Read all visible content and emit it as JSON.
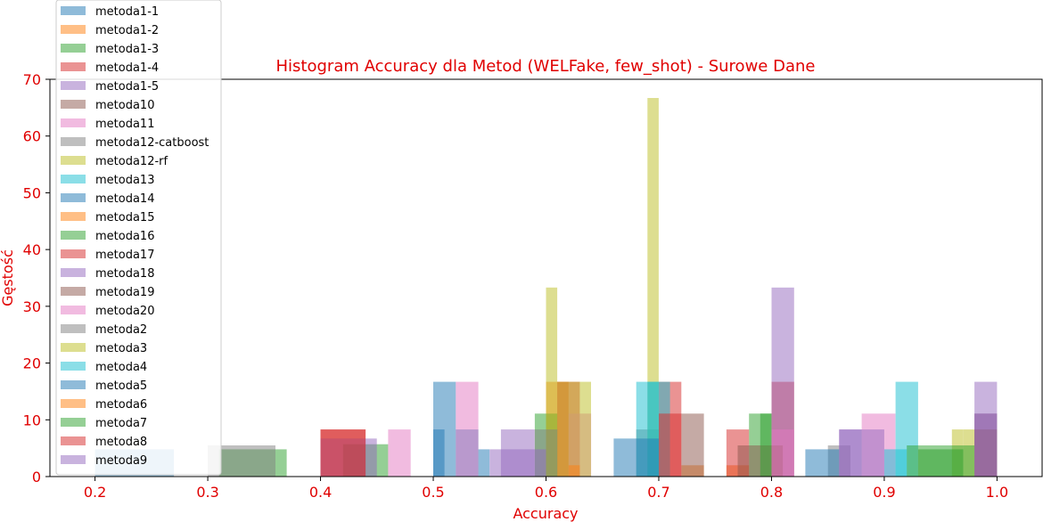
{
  "chart_data": {
    "type": "bar",
    "title": "Histogram Accuracy dla Metod (WELFake, few_shot) - Surowe Dane",
    "xlabel": "Accuracy",
    "ylabel": "Gęstość",
    "xlim": [
      0.16,
      1.04
    ],
    "ylim": [
      0,
      70
    ],
    "x_ticks": [
      "0.2",
      "0.3",
      "0.4",
      "0.5",
      "0.6",
      "0.7",
      "0.8",
      "0.9",
      "1.0"
    ],
    "y_ticks": [
      "0",
      "10",
      "20",
      "30",
      "40",
      "50",
      "60",
      "70"
    ],
    "legend_position": "top-left",
    "series": [
      {
        "name": "metoda1-1",
        "color": "#1f77b4",
        "bins": [
          [
            0.5,
            0.52,
            16.7
          ],
          [
            0.52,
            0.54,
            8.3
          ]
        ]
      },
      {
        "name": "metoda1-2",
        "color": "#ff7f0e",
        "bins": [
          [
            0.6,
            0.62,
            16.7
          ],
          [
            0.72,
            0.74,
            2.0
          ]
        ]
      },
      {
        "name": "metoda1-3",
        "color": "#2ca02c",
        "bins": [
          [
            0.59,
            0.61,
            11.1
          ],
          [
            0.78,
            0.8,
            11.1
          ]
        ]
      },
      {
        "name": "metoda1-4",
        "color": "#d62728",
        "bins": [
          [
            0.61,
            0.63,
            16.7
          ],
          [
            0.7,
            0.72,
            16.7
          ],
          [
            0.8,
            0.82,
            16.7
          ]
        ]
      },
      {
        "name": "metoda1-5",
        "color": "#9467bd",
        "bins": [
          [
            0.56,
            0.59,
            8.3
          ],
          [
            0.8,
            0.82,
            33.3
          ]
        ]
      },
      {
        "name": "metoda10",
        "color": "#8c564b",
        "bins": [
          [
            0.72,
            0.74,
            11.1
          ],
          [
            0.98,
            1.0,
            11.1
          ]
        ]
      },
      {
        "name": "metoda11",
        "color": "#e377c2",
        "bins": [
          [
            0.52,
            0.54,
            16.7
          ],
          [
            0.62,
            0.64,
            11.1
          ],
          [
            0.88,
            0.91,
            11.1
          ]
        ]
      },
      {
        "name": "metoda12-catboost",
        "color": "#7f7f7f",
        "bins": [
          [
            0.68,
            0.7,
            8.3
          ],
          [
            0.85,
            0.87,
            5.5
          ]
        ]
      },
      {
        "name": "metoda12-rf",
        "color": "#bcbd22",
        "bins": [
          [
            0.6,
            0.61,
            33.3
          ],
          [
            0.61,
            0.63,
            16.7
          ],
          [
            0.69,
            0.7,
            66.7
          ],
          [
            0.96,
            0.97,
            8.3
          ]
        ]
      },
      {
        "name": "metoda13",
        "color": "#17becf",
        "bins": [
          [
            0.69,
            0.71,
            16.7
          ],
          [
            0.91,
            0.93,
            16.7
          ]
        ]
      },
      {
        "name": "metoda14",
        "color": "#1f77b4",
        "bins": [
          [
            0.2,
            0.27,
            4.8
          ],
          [
            0.5,
            0.51,
            8.3
          ]
        ]
      },
      {
        "name": "metoda15",
        "color": "#ff7f0e",
        "bins": [
          [
            0.76,
            0.78,
            2.0
          ]
        ]
      },
      {
        "name": "metoda16",
        "color": "#2ca02c",
        "bins": [
          [
            0.31,
            0.37,
            4.8
          ],
          [
            0.42,
            0.46,
            5.7
          ],
          [
            0.93,
            0.97,
            4.8
          ]
        ]
      },
      {
        "name": "metoda17",
        "color": "#d62728",
        "bins": [
          [
            0.4,
            0.44,
            8.3
          ],
          [
            0.76,
            0.78,
            8.3
          ]
        ]
      },
      {
        "name": "metoda18",
        "color": "#9467bd",
        "bins": [
          [
            0.4,
            0.45,
            6.7
          ],
          [
            0.86,
            0.88,
            8.3
          ],
          [
            0.98,
            1.0,
            16.7
          ]
        ]
      },
      {
        "name": "metoda19",
        "color": "#8c564b",
        "bins": [
          [
            0.77,
            0.81,
            5.5
          ],
          [
            0.98,
            1.0,
            8.3
          ]
        ]
      },
      {
        "name": "metoda20",
        "color": "#e377c2",
        "bins": [
          [
            0.46,
            0.48,
            8.3
          ],
          [
            0.8,
            0.82,
            8.3
          ]
        ]
      },
      {
        "name": "metoda2",
        "color": "#7f7f7f",
        "bins": [
          [
            0.3,
            0.36,
            5.5
          ],
          [
            0.59,
            0.61,
            8.3
          ]
        ]
      },
      {
        "name": "metoda3",
        "color": "#bcbd22",
        "bins": [
          [
            0.63,
            0.64,
            16.7
          ],
          [
            0.97,
            0.98,
            8.3
          ]
        ]
      },
      {
        "name": "metoda4",
        "color": "#17becf",
        "bins": [
          [
            0.68,
            0.7,
            16.7
          ],
          [
            0.9,
            0.92,
            4.8
          ]
        ]
      },
      {
        "name": "metoda5",
        "color": "#1f77b4",
        "bins": [
          [
            0.54,
            0.55,
            4.8
          ],
          [
            0.66,
            0.7,
            6.7
          ],
          [
            0.83,
            0.86,
            4.8
          ]
        ]
      },
      {
        "name": "metoda6",
        "color": "#ff7f0e",
        "bins": [
          [
            0.62,
            0.63,
            2.0
          ]
        ]
      },
      {
        "name": "metoda7",
        "color": "#2ca02c",
        "bins": [
          [
            0.92,
            0.98,
            5.5
          ],
          [
            0.79,
            0.8,
            11.1
          ]
        ]
      },
      {
        "name": "metoda8",
        "color": "#d62728",
        "bins": [
          [
            0.7,
            0.72,
            11.1
          ],
          [
            0.4,
            0.44,
            8.3
          ]
        ]
      },
      {
        "name": "metoda9",
        "color": "#9467bd",
        "bins": [
          [
            0.55,
            0.6,
            4.8
          ],
          [
            0.86,
            0.9,
            8.3
          ],
          [
            0.98,
            1.0,
            11.1
          ]
        ]
      }
    ]
  }
}
